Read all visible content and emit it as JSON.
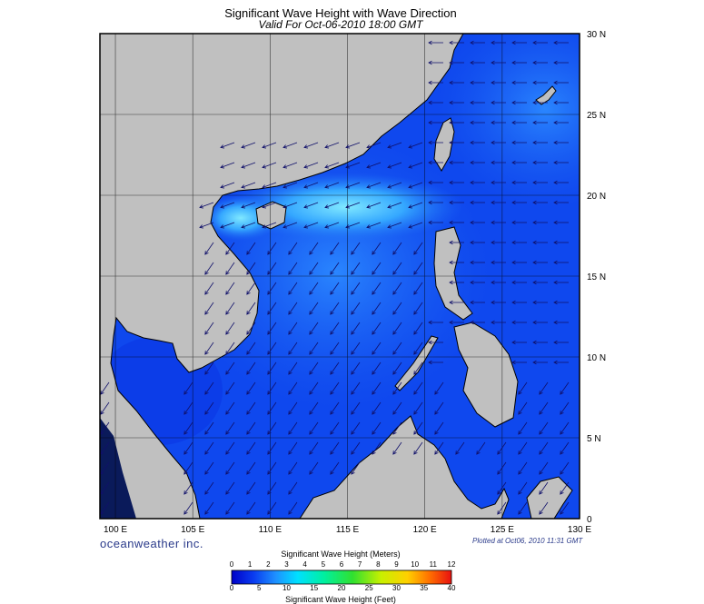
{
  "title": "Significant Wave Height with Wave Direction",
  "subtitle": "Valid For Oct-06-2010 18:00 GMT",
  "brand": "oceanweather inc.",
  "plotted": "Plotted at Oct06, 2010 11:31 GMT",
  "lon_labels": [
    "100 E",
    "105 E",
    "110 E",
    "115 E",
    "120 E",
    "125 E",
    "130 E"
  ],
  "lat_labels": [
    "0",
    "5 N",
    "10 N",
    "15 N",
    "20 N",
    "25 N",
    "30 N"
  ],
  "colorbar": {
    "title_meters": "Significant Wave Height (Meters)",
    "title_feet": "Significant Wave Height (Feet)",
    "meters_ticks": [
      "0",
      "1",
      "2",
      "3",
      "4",
      "5",
      "6",
      "7",
      "8",
      "9",
      "10",
      "11",
      "12"
    ],
    "feet_ticks": [
      "0",
      "5",
      "10",
      "15",
      "20",
      "25",
      "30",
      "35",
      "40"
    ]
  },
  "colors": {
    "land": "#c0c0c0",
    "ocean_deep": "#0a3cf0",
    "ocean_mid": "#1e6cf5",
    "ocean_light": "#5fd0ff",
    "arrow": "#10106a"
  },
  "chart_data": {
    "type": "heatmap",
    "xlim": [
      99,
      130
    ],
    "ylim": [
      0,
      30
    ],
    "grid": true
  }
}
